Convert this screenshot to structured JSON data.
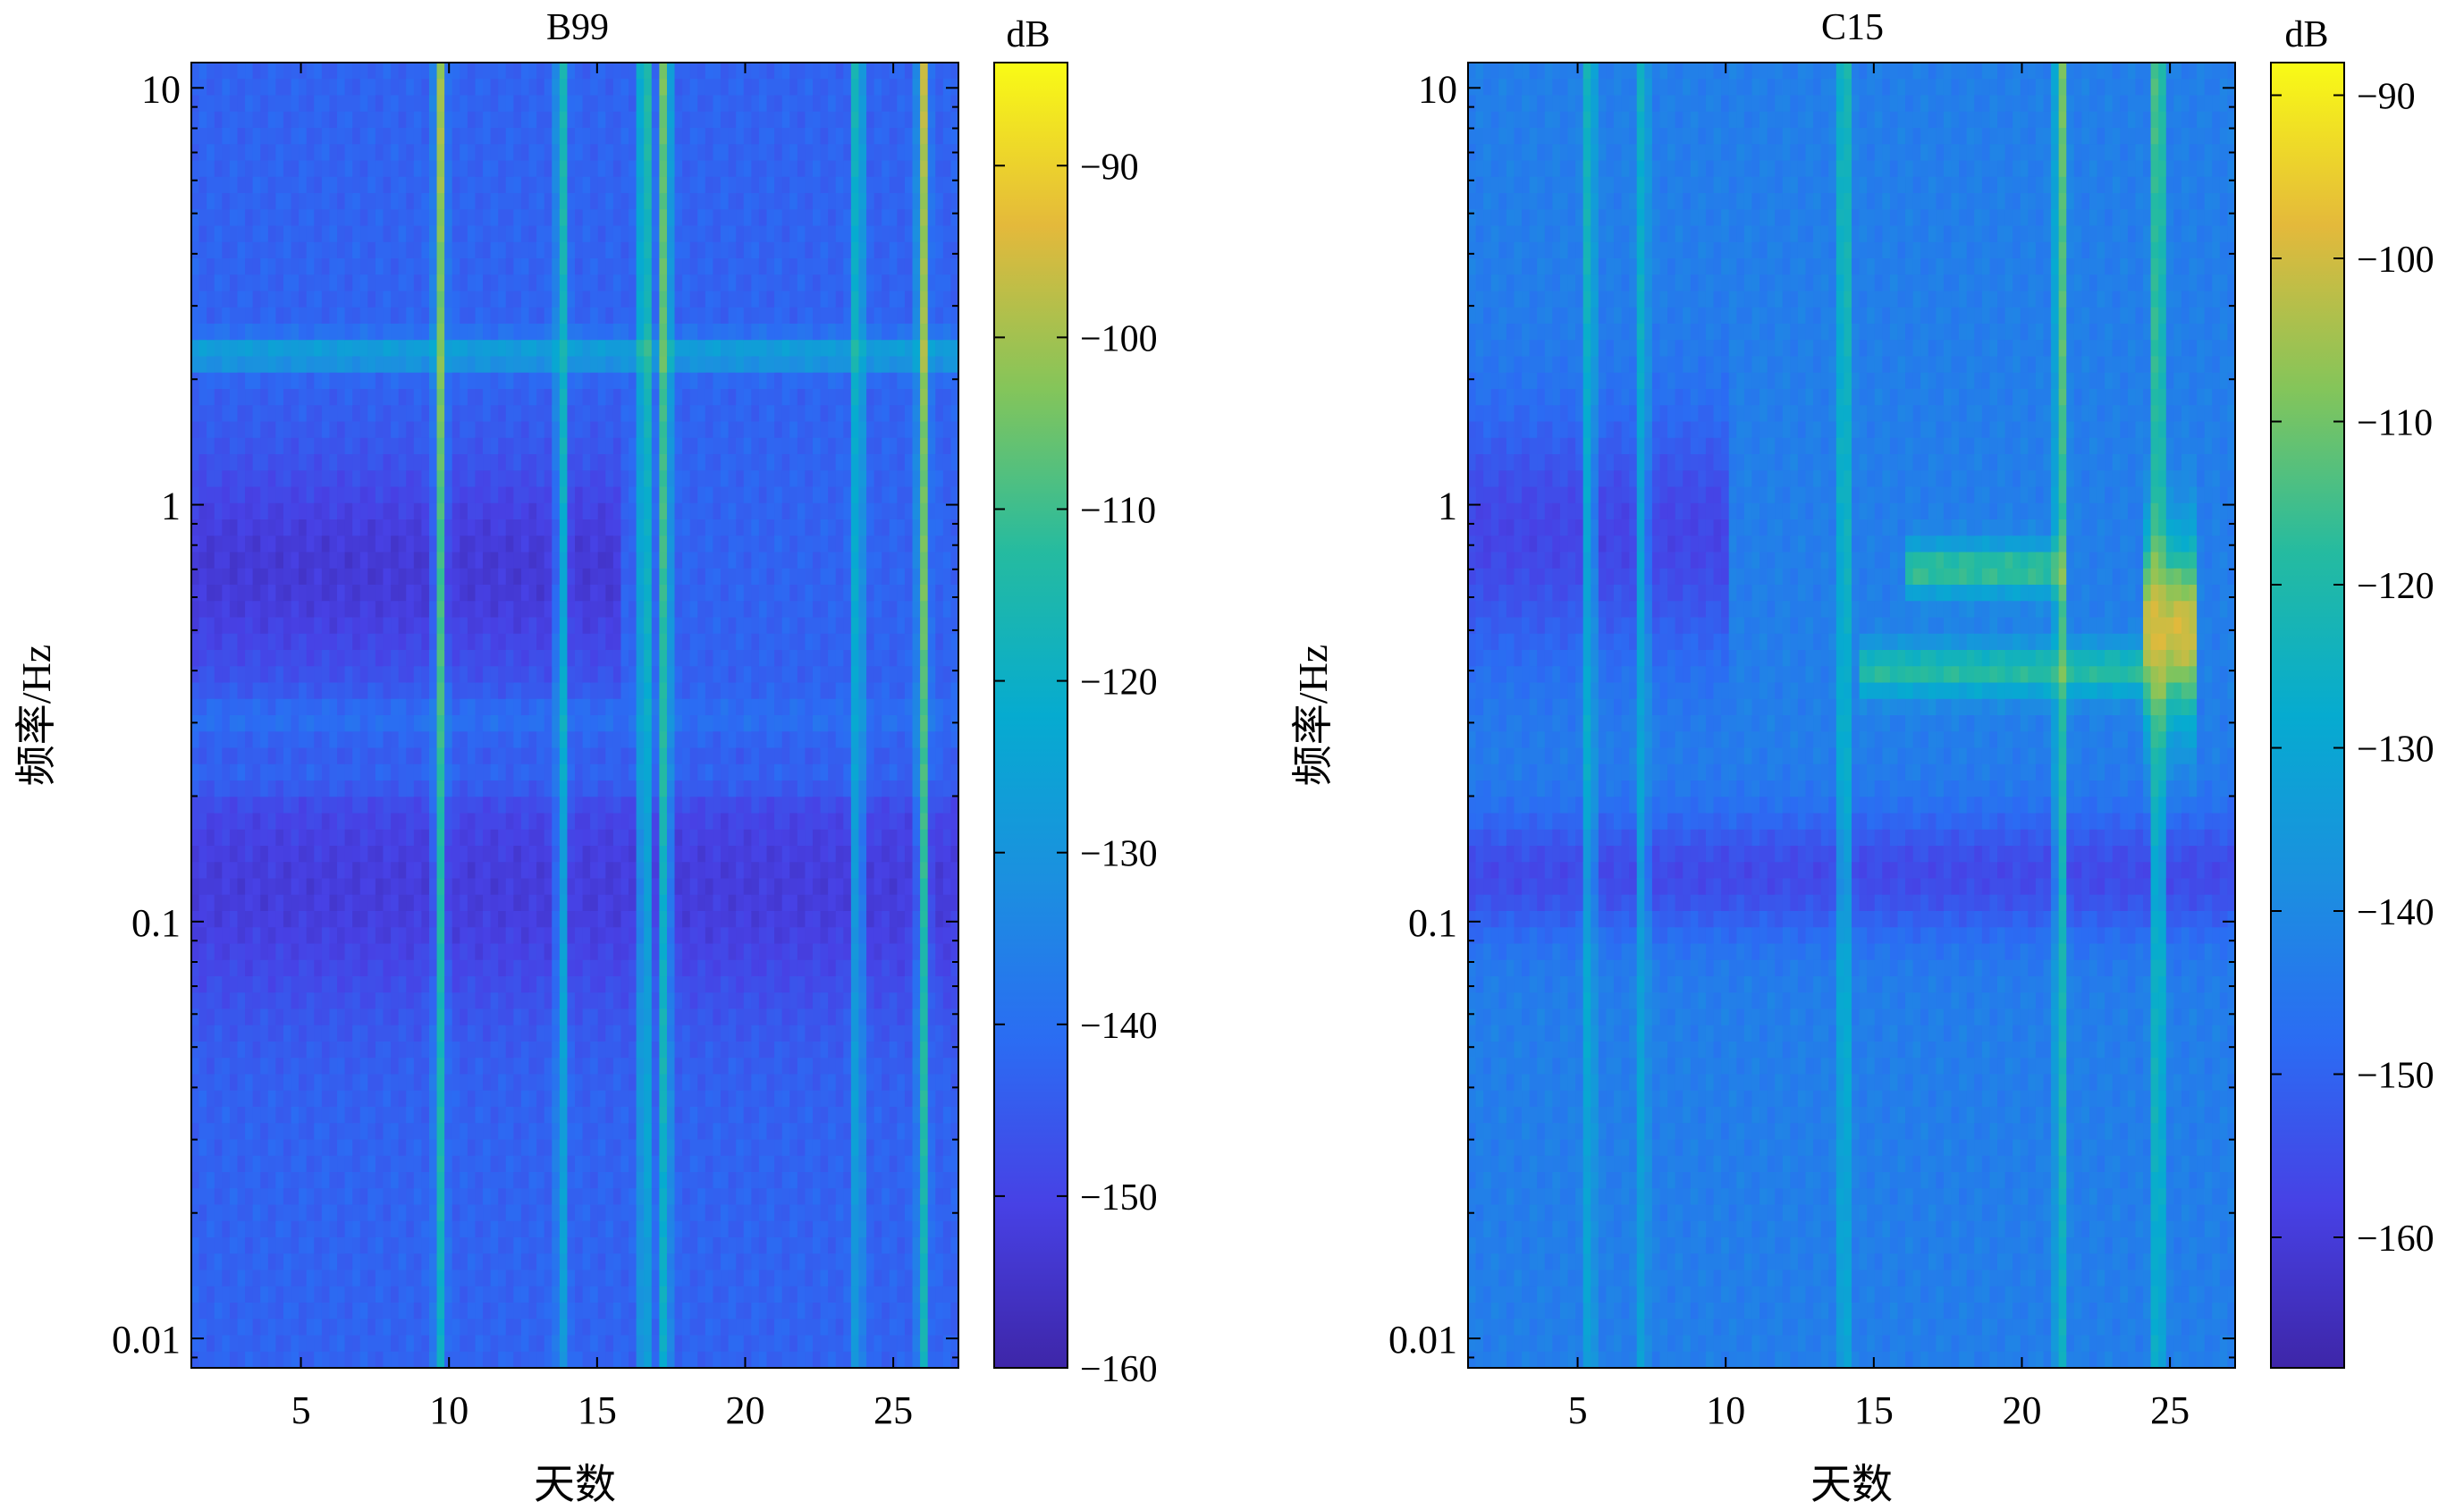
{
  "chart_data": [
    {
      "type": "heatmap",
      "title": "B99",
      "xlabel": "天数",
      "ylabel": "频率/Hz",
      "x_range": [
        1.3,
        27.2
      ],
      "x_ticks": [
        5,
        10,
        15,
        20,
        25
      ],
      "y_scale": "log",
      "y_range": [
        0.0085,
        11.5
      ],
      "y_ticks": [
        0.01,
        0.1,
        1,
        10
      ],
      "y_tick_labels": [
        "0.01",
        "0.1",
        "1",
        "10"
      ],
      "colorbar": {
        "label": "dB",
        "range": [
          -160,
          -84
        ],
        "ticks": [
          -90,
          -100,
          -110,
          -120,
          -130,
          -140,
          -150,
          -160
        ],
        "tick_labels": [
          "−90",
          "−100",
          "−110",
          "−120",
          "−130",
          "−140",
          "−150",
          "−160"
        ]
      },
      "background_level": -143,
      "bands": [
        {
          "f": 0.7,
          "width": 0.26,
          "level": -153,
          "x": [
            1.3,
            15.8
          ]
        },
        {
          "f": 0.22,
          "width": 0.05,
          "level": -136,
          "x": [
            1.3,
            27.2
          ]
        },
        {
          "f": 0.3,
          "width": 0.06,
          "level": -138,
          "x": [
            1.3,
            27.2
          ]
        },
        {
          "f": 2.3,
          "width": 0.04,
          "level": -125,
          "x": [
            1.3,
            27.2
          ]
        },
        {
          "f": 0.12,
          "width": 0.3,
          "level": -152,
          "x": [
            1.3,
            27.2
          ]
        }
      ],
      "events": [
        {
          "day": 9.7,
          "level": -100
        },
        {
          "day": 13.8,
          "level": -112
        },
        {
          "day": 16.6,
          "level": -102
        },
        {
          "day": 17.3,
          "level": -98
        },
        {
          "day": 23.8,
          "level": -110
        },
        {
          "day": 26.0,
          "level": -96
        }
      ]
    },
    {
      "type": "heatmap",
      "title": "C15",
      "xlabel": "天数",
      "ylabel": "频率/Hz",
      "x_range": [
        1.3,
        27.2
      ],
      "x_ticks": [
        5,
        10,
        15,
        20,
        25
      ],
      "y_scale": "log",
      "y_range": [
        0.0085,
        11.5
      ],
      "y_ticks": [
        0.01,
        0.1,
        1,
        10
      ],
      "y_tick_labels": [
        "0.01",
        "0.1",
        "1",
        "10"
      ],
      "colorbar": {
        "label": "dB",
        "range": [
          -168,
          -88
        ],
        "ticks": [
          -90,
          -100,
          -110,
          -120,
          -130,
          -140,
          -150,
          -160
        ],
        "tick_labels": [
          "−90",
          "−100",
          "−110",
          "−120",
          "−130",
          "−140",
          "−150",
          "−160"
        ]
      },
      "background_level": -143,
      "bands": [
        {
          "f": 0.85,
          "width": 0.3,
          "level": -157,
          "x": [
            1.3,
            10.0
          ]
        },
        {
          "f": 0.13,
          "width": 0.15,
          "level": -156,
          "x": [
            1.3,
            27.2
          ]
        },
        {
          "f": 0.4,
          "width": 0.06,
          "level": -118,
          "x": [
            14.5,
            24.0
          ]
        },
        {
          "f": 0.7,
          "width": 0.06,
          "level": -115,
          "x": [
            16.0,
            21.5
          ]
        },
        {
          "f": 0.5,
          "width": 0.22,
          "level": -100,
          "x": [
            24.0,
            26.0
          ]
        }
      ],
      "events": [
        {
          "day": 5.4,
          "level": -118
        },
        {
          "day": 7.2,
          "level": -122
        },
        {
          "day": 14.0,
          "level": -110
        },
        {
          "day": 21.3,
          "level": -105
        },
        {
          "day": 24.6,
          "level": -100
        }
      ]
    }
  ]
}
